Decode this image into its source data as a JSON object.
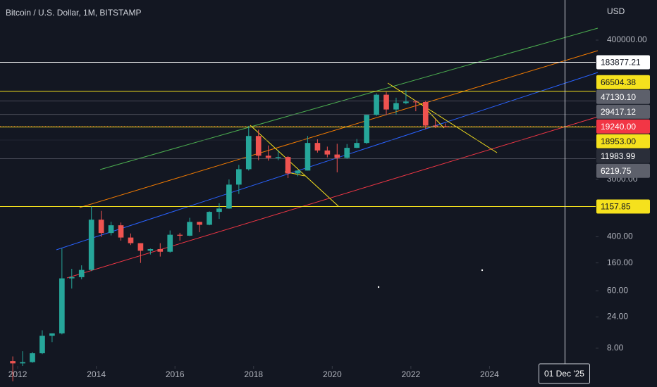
{
  "chart_data": {
    "type": "candlestick",
    "title": "Bitcoin / U.S. Dollar, 1M, BITSTAMP",
    "currency": "USD",
    "log_scale": true,
    "xlim": [
      2011.55,
      2026.7
    ],
    "xticks": [
      2012,
      2014,
      2016,
      2018,
      2020,
      2022,
      2024
    ],
    "ylim": [
      4.3,
      1636000
    ],
    "yticks": [
      {
        "value": 400000,
        "label": "400000.00"
      },
      {
        "value": 3000,
        "label": "3000.00"
      },
      {
        "value": 400,
        "label": "400.00"
      },
      {
        "value": 160,
        "label": "160.00"
      },
      {
        "value": 60,
        "label": "60.00"
      },
      {
        "value": 24,
        "label": "24.00"
      },
      {
        "value": 8,
        "label": "8.00"
      }
    ],
    "up_color": "#26a69a",
    "down_color": "#ef5350",
    "x": [
      2011.875,
      2012.125,
      2012.375,
      2012.625,
      2012.875,
      2013.125,
      2013.375,
      2013.625,
      2013.875,
      2014.125,
      2014.375,
      2014.625,
      2014.875,
      2015.125,
      2015.375,
      2015.625,
      2015.875,
      2016.125,
      2016.375,
      2016.625,
      2016.875,
      2017.125,
      2017.375,
      2017.625,
      2017.875,
      2018.125,
      2018.375,
      2018.625,
      2018.875,
      2019.125,
      2019.375,
      2019.625,
      2019.875,
      2020.125,
      2020.375,
      2020.625,
      2020.875,
      2021.125,
      2021.375,
      2021.625,
      2021.875,
      2022.125,
      2022.375,
      2022.625,
      2022.875
    ],
    "open": [
      5.1,
      4.7,
      4.9,
      6.7,
      12.4,
      13.5,
      93,
      97,
      125,
      730,
      457,
      600,
      390,
      320,
      245,
      260,
      237,
      430,
      416,
      675,
      610,
      960,
      1080,
      2500,
      4300,
      13800,
      6900,
      6400,
      6600,
      3700,
      4100,
      10800,
      8300,
      7200,
      6400,
      9100,
      10800,
      29000,
      58800,
      35000,
      43800,
      46200,
      45500,
      19900,
      19400
    ],
    "high": [
      6,
      7.2,
      7,
      15,
      13.5,
      266,
      130,
      147,
      1163,
      995,
      680,
      660,
      450,
      320,
      265,
      320,
      500,
      460,
      780,
      680,
      980,
      1300,
      3000,
      5000,
      19666,
      17200,
      9900,
      8500,
      6800,
      4100,
      13800,
      12300,
      9500,
      10500,
      10400,
      12400,
      29000,
      61800,
      64800,
      52900,
      69000,
      48200,
      47400,
      25200,
      21500
    ],
    "low": [
      2.5,
      4.3,
      4.8,
      6.5,
      9.9,
      13,
      65,
      90,
      120,
      400,
      420,
      350,
      300,
      160,
      215,
      200,
      230,
      350,
      410,
      470,
      600,
      750,
      1070,
      1800,
      4100,
      5900,
      5800,
      5900,
      3150,
      3350,
      4100,
      7700,
      6500,
      3850,
      6200,
      9000,
      10400,
      28000,
      28800,
      29300,
      42000,
      32900,
      17600,
      18200,
      19100
    ],
    "close": [
      4.7,
      4.9,
      6.7,
      12.4,
      13.5,
      93,
      97,
      125,
      730,
      457,
      600,
      390,
      320,
      245,
      260,
      237,
      430,
      416,
      675,
      610,
      960,
      1080,
      2500,
      4300,
      13800,
      6900,
      6400,
      6600,
      3700,
      4100,
      10800,
      8300,
      7200,
      6400,
      9100,
      10800,
      29000,
      58800,
      35000,
      43800,
      46200,
      45500,
      19900,
      19400,
      19240
    ],
    "price_lines": [
      {
        "value": 183877.21,
        "label": "183877.21",
        "color": "#ffffff",
        "text_color": "#131722"
      },
      {
        "value": 66504.38,
        "label": "66504.38",
        "color": "#f5e11d",
        "text_color": "#131722"
      },
      {
        "value": 47130.1,
        "label": "47130.10",
        "color": "#5d606b",
        "text_color": "#ffffff"
      },
      {
        "value": 29417.12,
        "label": "29417.12",
        "color": "#5d606b",
        "text_color": "#ffffff"
      },
      {
        "value": 19240,
        "label": "19240.00",
        "color": "#f23645",
        "text_color": "#ffffff"
      },
      {
        "value": 18953,
        "label": "18953.00",
        "color": "#f5e11d",
        "text_color": "#131722"
      },
      {
        "value": 11983.99,
        "label": "11983.99",
        "color": "#2a2e39",
        "text_color": "#ffffff"
      },
      {
        "value": 6219.75,
        "label": "6219.75",
        "color": "#5d606b",
        "text_color": "#ffffff"
      },
      {
        "value": 1157.85,
        "label": "1157.85",
        "color": "#f5e11d",
        "text_color": "#131722"
      }
    ],
    "crosshair": {
      "x": 2025.92,
      "label": "01 Dec '25"
    }
  }
}
